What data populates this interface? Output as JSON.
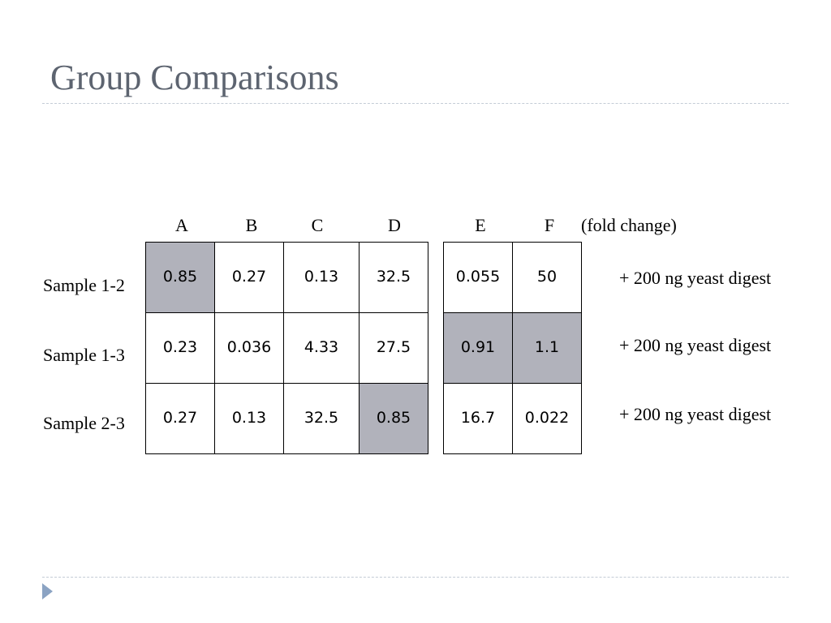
{
  "slide": {
    "title": "Group Comparisons"
  },
  "table": {
    "columns": [
      "A",
      "B",
      "C",
      "D",
      "E",
      "F"
    ],
    "unit_label": "(fold change)",
    "row_labels": [
      "Sample 1-2",
      "Sample 1-3",
      "Sample 2-3"
    ],
    "rows": [
      [
        "0.85",
        "0.27",
        "0.13",
        "32.5",
        "0.055",
        "50"
      ],
      [
        "0.23",
        "0.036",
        "4.33",
        "27.5",
        "0.91",
        "1.1"
      ],
      [
        "0.27",
        "0.13",
        "32.5",
        "0.85",
        "16.7",
        "0.022"
      ]
    ],
    "highlighted_cells": [
      [
        0,
        0
      ],
      [
        1,
        4
      ],
      [
        1,
        5
      ],
      [
        2,
        3
      ]
    ],
    "highlight_color": "#b1b2bb",
    "notes": [
      "+ 200 ng yeast digest",
      "+ 200 ng yeast digest",
      "+ 200 ng yeast digest"
    ]
  },
  "colors": {
    "title": "#5d6470",
    "rule": "#c4ccd6",
    "bullet": "#8ba3c3"
  },
  "icons": {
    "bullet": "triangle-bullet-icon"
  }
}
